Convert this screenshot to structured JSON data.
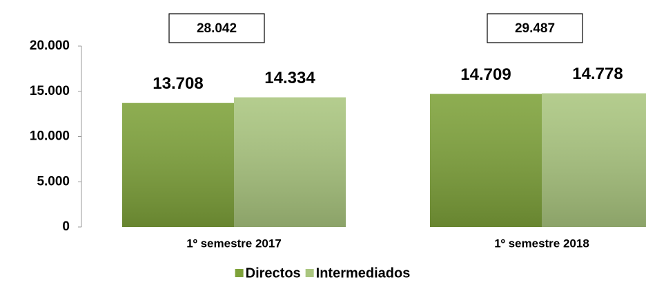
{
  "chart_data": {
    "type": "bar",
    "categories": [
      "1º semestre 2017",
      "1º semestre 2018"
    ],
    "series": [
      {
        "name": "Directos",
        "color": "#7ea23a",
        "values": [
          13708,
          14709
        ],
        "value_labels": [
          "13.708",
          "14.709"
        ]
      },
      {
        "name": "Intermediados",
        "color": "#aac67f",
        "values": [
          14334,
          14778
        ],
        "value_labels": [
          "14.334",
          "14.778"
        ]
      }
    ],
    "totals": [
      28042,
      29487
    ],
    "total_labels": [
      "28.042",
      "29.487"
    ],
    "ylim": [
      0,
      20000
    ],
    "yticks": [
      {
        "value": 0,
        "label": "0"
      },
      {
        "value": 5000,
        "label": "5.000"
      },
      {
        "value": 10000,
        "label": "10.000"
      },
      {
        "value": 15000,
        "label": "15.000"
      },
      {
        "value": 20000,
        "label": "20.000"
      }
    ],
    "legend": "bottom"
  }
}
